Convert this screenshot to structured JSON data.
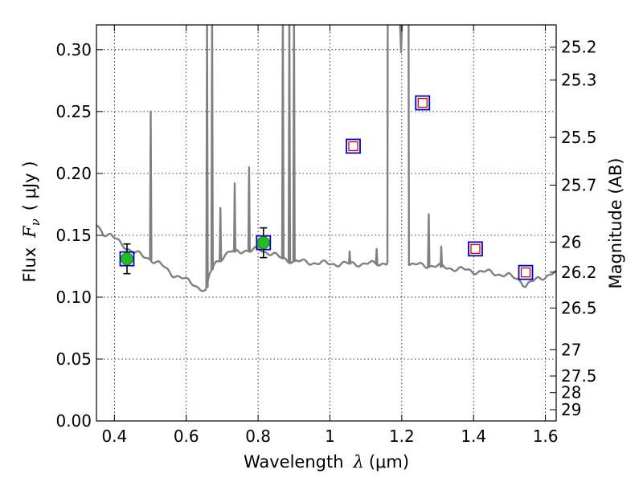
{
  "chart_data": {
    "type": "line",
    "xlabel": "Wavelength",
    "xlabel_symbol": "λ",
    "xlabel_unit": "(μm)",
    "ylabel": "Flux",
    "ylabel_symbol": "F",
    "ylabel_sub": "ν",
    "ylabel_unit": "( μJy )",
    "y2label": "Magnitude (AB)",
    "xlim": [
      0.35,
      1.63
    ],
    "ylim": [
      0.0,
      0.32
    ],
    "grid": true,
    "xticks": [
      {
        "v": 0.4,
        "label": "0.4"
      },
      {
        "v": 0.6,
        "label": "0.6"
      },
      {
        "v": 0.8,
        "label": "0.8"
      },
      {
        "v": 1.0,
        "label": "1"
      },
      {
        "v": 1.2,
        "label": "1.2"
      },
      {
        "v": 1.4,
        "label": "1.4"
      },
      {
        "v": 1.6,
        "label": "1.6"
      }
    ],
    "yticks": [
      {
        "v": 0.0,
        "label": "0.00"
      },
      {
        "v": 0.05,
        "label": "0.05"
      },
      {
        "v": 0.1,
        "label": "0.10"
      },
      {
        "v": 0.15,
        "label": "0.15"
      },
      {
        "v": 0.2,
        "label": "0.20"
      },
      {
        "v": 0.25,
        "label": "0.25"
      },
      {
        "v": 0.3,
        "label": "0.30"
      }
    ],
    "magticks": [
      {
        "label": "25.2"
      },
      {
        "label": "25.3"
      },
      {
        "label": "25.5"
      },
      {
        "label": "25.7"
      },
      {
        "label": "26"
      },
      {
        "label": "26.2"
      },
      {
        "label": "26.5"
      },
      {
        "label": "27"
      },
      {
        "label": "27.5"
      },
      {
        "label": "28"
      },
      {
        "label": "29"
      }
    ],
    "magticks_values": [
      25.2,
      25.3,
      25.5,
      25.7,
      26.0,
      26.2,
      26.5,
      27.0,
      27.5,
      28.0,
      29.0
    ],
    "spectrum": {
      "color": "#808080",
      "continuum": [
        [
          0.35,
          0.158
        ],
        [
          0.37,
          0.152
        ],
        [
          0.39,
          0.15
        ],
        [
          0.41,
          0.145
        ],
        [
          0.43,
          0.141
        ],
        [
          0.45,
          0.137
        ],
        [
          0.48,
          0.133
        ],
        [
          0.5,
          0.131
        ],
        [
          0.53,
          0.126
        ],
        [
          0.56,
          0.119
        ],
        [
          0.59,
          0.115
        ],
        [
          0.62,
          0.111
        ],
        [
          0.64,
          0.107
        ],
        [
          0.655,
          0.104
        ],
        [
          0.665,
          0.118
        ],
        [
          0.68,
          0.128
        ],
        [
          0.7,
          0.132
        ],
        [
          0.72,
          0.136
        ],
        [
          0.74,
          0.137
        ],
        [
          0.76,
          0.138
        ],
        [
          0.78,
          0.137
        ],
        [
          0.8,
          0.139
        ],
        [
          0.82,
          0.137
        ],
        [
          0.84,
          0.135
        ],
        [
          0.86,
          0.132
        ],
        [
          0.9,
          0.129
        ],
        [
          0.95,
          0.128
        ],
        [
          1.0,
          0.127
        ],
        [
          1.05,
          0.127
        ],
        [
          1.1,
          0.127
        ],
        [
          1.14,
          0.127
        ],
        [
          1.15,
          0.128
        ],
        [
          1.16,
          0.128
        ],
        [
          1.22,
          0.126
        ],
        [
          1.26,
          0.126
        ],
        [
          1.3,
          0.125
        ],
        [
          1.35,
          0.123
        ],
        [
          1.4,
          0.121
        ],
        [
          1.45,
          0.12
        ],
        [
          1.5,
          0.117
        ],
        [
          1.53,
          0.114
        ],
        [
          1.545,
          0.109
        ],
        [
          1.555,
          0.111
        ],
        [
          1.58,
          0.115
        ],
        [
          1.61,
          0.118
        ],
        [
          1.63,
          0.12
        ]
      ],
      "lines": [
        {
          "x": 0.501,
          "peak": 0.25
        },
        {
          "x": 0.658,
          "peak": 0.33
        },
        {
          "x": 0.672,
          "peak": 0.33
        },
        {
          "x": 0.695,
          "peak": 0.172
        },
        {
          "x": 0.735,
          "peak": 0.192
        },
        {
          "x": 0.775,
          "peak": 0.205
        },
        {
          "x": 0.869,
          "peak": 0.33
        },
        {
          "x": 0.887,
          "peak": 0.33
        },
        {
          "x": 0.9,
          "peak": 0.33
        },
        {
          "x": 1.055,
          "peak": 0.137
        },
        {
          "x": 1.13,
          "peak": 0.139
        },
        {
          "x": 1.275,
          "peak": 0.167
        },
        {
          "x": 1.31,
          "peak": 0.141
        }
      ],
      "blocks": [
        {
          "x0": 1.16,
          "x1": 1.22,
          "peak": 0.33,
          "dip_x": 1.198,
          "dip": 0.298
        }
      ]
    },
    "photometry": [
      {
        "x": 0.435,
        "y": 0.131,
        "err": 0.012,
        "detected": true
      },
      {
        "x": 0.815,
        "y": 0.144,
        "err": 0.012,
        "detected": true
      },
      {
        "x": 1.065,
        "y": 0.222,
        "err": 0,
        "detected": false
      },
      {
        "x": 1.258,
        "y": 0.257,
        "err": 0,
        "detected": false
      },
      {
        "x": 1.405,
        "y": 0.139,
        "err": 0,
        "detected": false
      },
      {
        "x": 1.545,
        "y": 0.12,
        "err": 0,
        "detected": false
      }
    ],
    "colors": {
      "square_edge": "#0000cc",
      "model_square": "#dd0000",
      "detected_fill": "#22bb22",
      "errorbar": "#000000",
      "grid": "#000000"
    }
  }
}
